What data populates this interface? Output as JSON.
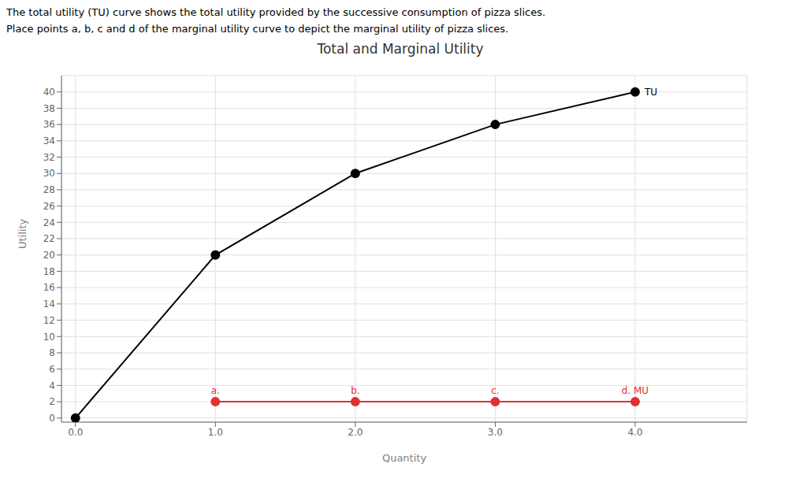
{
  "chart_data": {
    "type": "line",
    "title": "Total and Marginal Utility",
    "subtitle": [
      "The total utility (TU) curve shows the total utility provided by the successive consumption of pizza slices.",
      "Place points a, b, c and d of the marginal utility curve to depict the marginal utility of pizza slices."
    ],
    "x_label": "Quantity",
    "y_label": "Utility",
    "series": [
      {
        "color": "#000000",
        "marker": "circle",
        "line_style": "solid",
        "x": [
          0,
          1,
          2,
          3,
          4
        ],
        "values": [
          0,
          20,
          30,
          36,
          40
        ]
      },
      {
        "color": "#e03030",
        "marker": "circle",
        "line_style": "solid",
        "x": [
          1,
          2,
          3,
          4
        ],
        "values": [
          2,
          2,
          2,
          2
        ]
      }
    ],
    "annotations": [
      {
        "text": "TU",
        "x": 4,
        "y": 40,
        "color": "#000000"
      },
      {
        "text": "a.",
        "x": 1,
        "y": 2,
        "color": "#e03030"
      },
      {
        "text": "b.",
        "x": 2,
        "y": 2,
        "color": "#e03030"
      },
      {
        "text": "c.",
        "x": 3,
        "y": 2,
        "color": "#e03030"
      },
      {
        "text": "d. MU",
        "x": 4,
        "y": 2,
        "color": "#e03030"
      }
    ],
    "xlim": [
      -0.1,
      4.8
    ],
    "ylim": [
      -0.5,
      42
    ],
    "xticks": [
      {
        "value": 0,
        "label": "0.0"
      },
      {
        "value": 1,
        "label": "1.0"
      },
      {
        "value": 2,
        "label": "2.0"
      },
      {
        "value": 3,
        "label": "3.0"
      },
      {
        "value": 4,
        "label": "4.0"
      }
    ],
    "yticks": [
      0,
      2,
      4,
      6,
      8,
      10,
      12,
      14,
      16,
      18,
      20,
      22,
      24,
      26,
      28,
      30,
      32,
      34,
      36,
      38,
      40
    ],
    "grid": true
  }
}
